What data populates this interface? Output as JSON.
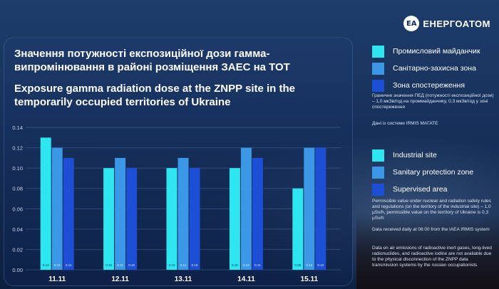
{
  "brand": {
    "mark": "EA",
    "name": "ЕНЕРГОАТОМ"
  },
  "title_uk": "Значення потужності експозиційної дози гамма-випромінювання в районі розміщення ЗАЕС на ТОТ",
  "title_en": "Exposure gamma radiation dose at the ZNPP site in the temporarily occupied territories of Ukraine",
  "colors": {
    "industrial": "#2de6f0",
    "sanitary": "#3b98e6",
    "supervised": "#1c4fd6"
  },
  "legend_uk": [
    "Промисловий майданчик",
    "Санітарно-захисна зона",
    "Зона спостереження"
  ],
  "legend_en": [
    "Industrial site",
    "Sanitary protection zone",
    "Supervised area"
  ],
  "notes_uk": [
    "Граничне значення ПЕД (потужності експозиційної дози) – 1,0 мкЗв/год на проммайданчику, 0,3 мкЗв/год у зоні спостереження",
    "Дані із системи IRMIS МАГАТЕ"
  ],
  "notes_en": [
    "Permissible value under nuclear and radiation safety rules and regulations (on the territory of the industrial site) – 1,0 µSv/h, permissible value on the territory of Ukraine is 0,3 µSv/h",
    "Data received daily at 08:00 from the IAEA IRMIS system",
    "Data on air emissions of radioactive inert gases, long-lived radionuclides, and radioactive iodine are not available due to the physical disconnection of the ZNPP data transmission systems by the russian occupationists"
  ],
  "chart_data": {
    "type": "bar",
    "categories": [
      "11.11",
      "12.11",
      "13.11",
      "14.11",
      "15.11"
    ],
    "series": [
      {
        "name": "Industrial site",
        "values": [
          0.13,
          0.1,
          0.1,
          0.1,
          0.08
        ],
        "labels": [
          "0.13",
          "0.10",
          "0.10",
          "0.10",
          "0.08"
        ]
      },
      {
        "name": "Sanitary protection zone",
        "values": [
          0.12,
          0.11,
          0.11,
          0.12,
          0.12
        ],
        "labels": [
          "0.12",
          "0.11",
          "0.11",
          "0.12",
          "0.12"
        ]
      },
      {
        "name": "Supervised area",
        "values": [
          0.11,
          0.1,
          0.1,
          0.11,
          0.12
        ],
        "labels": [
          "0.11",
          "0.10",
          "0.10",
          "0.11",
          "0.12"
        ]
      }
    ],
    "ylim": [
      0,
      0.14
    ],
    "yticks": [
      "0.00",
      "0.02",
      "0.04",
      "0.06",
      "0.08",
      "0.10",
      "0.12",
      "0.14"
    ],
    "grid": true,
    "legend": "right"
  }
}
